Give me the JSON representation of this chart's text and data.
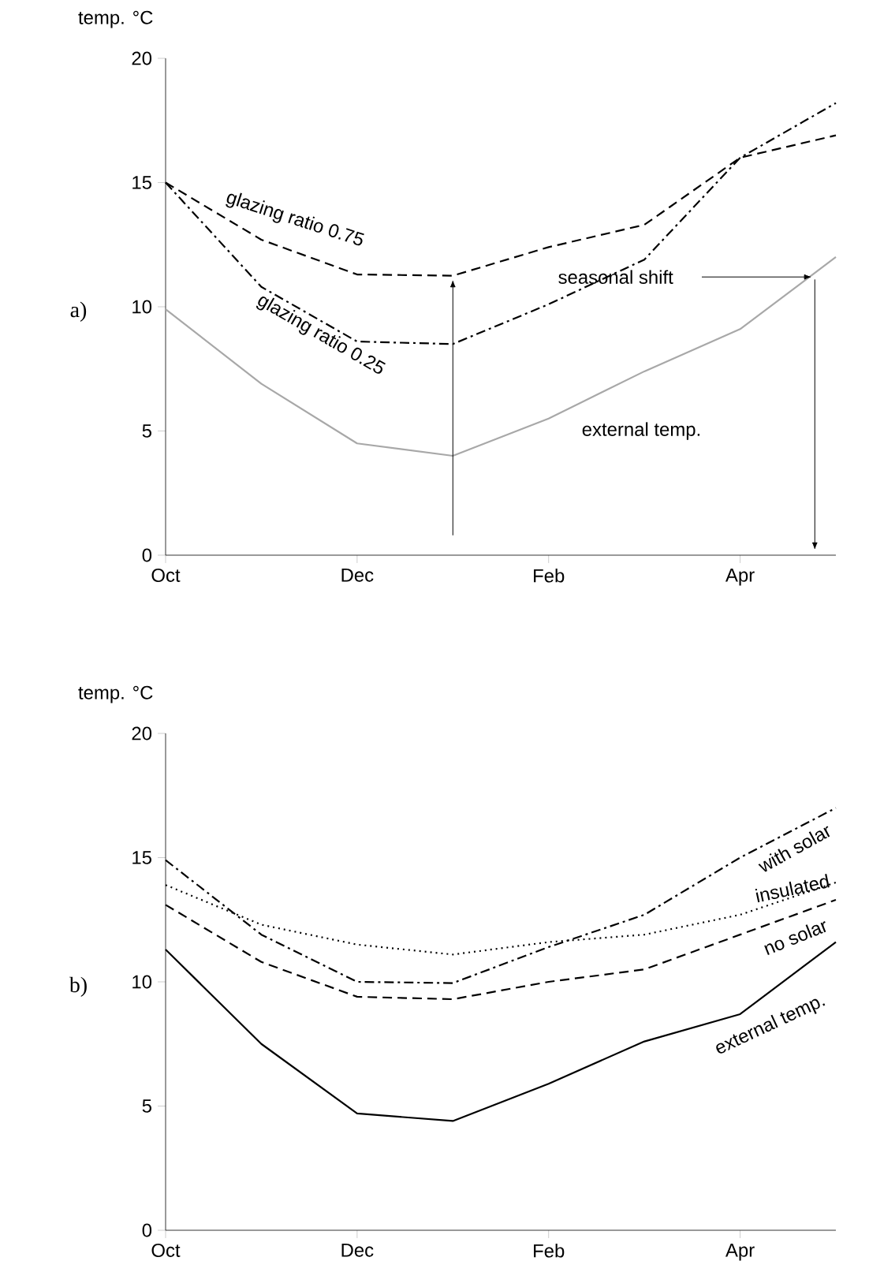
{
  "chart_data": [
    {
      "type": "line",
      "ylabel": "temp. °C",
      "annotations": [
        "a)",
        "seasonal shift"
      ],
      "ylim": [
        0,
        20
      ],
      "categories": [
        "Oct",
        null,
        "Dec",
        null,
        "Feb",
        null,
        "Apr",
        null
      ],
      "yticks": [
        0,
        5,
        10,
        15,
        20
      ],
      "marker": "none",
      "series": [
        {
          "name": "glazing ratio 0.75",
          "color": "#000000",
          "line_style": "dashed",
          "values": [
            15.0,
            12.7,
            11.3,
            11.25,
            12.4,
            13.3,
            16.0,
            16.9
          ]
        },
        {
          "name": "glazing ratio 0.25",
          "color": "#000000",
          "line_style": "dashdot",
          "values": [
            15.0,
            10.8,
            8.6,
            8.5,
            10.1,
            11.9,
            16.0,
            18.2
          ]
        },
        {
          "name": "external temp.",
          "color": "#a8a8a8",
          "line_style": "solid",
          "values": [
            9.9,
            6.9,
            4.5,
            4.0,
            5.5,
            7.4,
            9.1,
            12.0
          ]
        }
      ]
    },
    {
      "type": "line",
      "ylabel": "temp. °C",
      "annotations": [
        "b)"
      ],
      "ylim": [
        0,
        20
      ],
      "categories": [
        "Oct",
        null,
        "Dec",
        null,
        "Feb",
        null,
        "Apr",
        null
      ],
      "yticks": [
        0,
        5,
        10,
        15,
        20
      ],
      "marker": "none",
      "series": [
        {
          "name": "with solar",
          "color": "#000000",
          "line_style": "dashdot",
          "values": [
            14.9,
            11.9,
            10.0,
            9.95,
            11.4,
            12.7,
            15.0,
            17.0
          ]
        },
        {
          "name": "insulated",
          "color": "#000000",
          "line_style": "dotted",
          "values": [
            13.9,
            12.3,
            11.5,
            11.1,
            11.6,
            11.9,
            12.7,
            14.0
          ]
        },
        {
          "name": "no solar",
          "color": "#000000",
          "line_style": "dashed",
          "values": [
            13.1,
            10.8,
            9.4,
            9.3,
            10.0,
            10.5,
            11.9,
            13.3
          ]
        },
        {
          "name": "external temp.",
          "color": "#000000",
          "line_style": "solid",
          "values": [
            11.3,
            7.5,
            4.7,
            4.4,
            5.9,
            7.6,
            8.7,
            11.6
          ]
        }
      ]
    }
  ]
}
